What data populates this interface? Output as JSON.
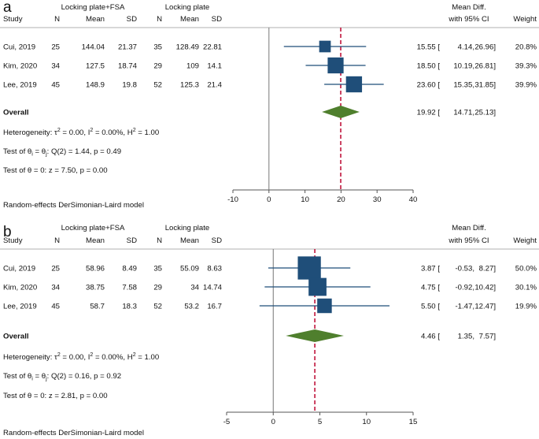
{
  "chart_data": [
    {
      "type": "forest",
      "panel_label": "a",
      "headers": {
        "study": "Study",
        "group1": "Locking plate+FSA",
        "group2": "Locking plate",
        "n": "N",
        "mean": "Mean",
        "sd": "SD",
        "effect_title": "Mean Diff.",
        "effect_sub": "with 95% CI",
        "weight": "Weight"
      },
      "studies": [
        {
          "name": "Cui, 2019",
          "n1": "25",
          "mean1": "144.04",
          "sd1": "21.37",
          "n2": "35",
          "mean2": "128.49",
          "sd2": "22.81",
          "md": 15.55,
          "lo": 4.14,
          "hi": 26.96,
          "weight": 20.8,
          "md_text": "15.55",
          "lo_text": "4.14,",
          "hi_text": "26.96]",
          "weight_text": "20.8%"
        },
        {
          "name": "Kim, 2020",
          "n1": "34",
          "mean1": "127.5",
          "sd1": "18.74",
          "n2": "29",
          "mean2": "109",
          "sd2": "14.1",
          "md": 18.5,
          "lo": 10.19,
          "hi": 26.81,
          "weight": 39.3,
          "md_text": "18.50",
          "lo_text": "10.19,",
          "hi_text": "26.81]",
          "weight_text": "39.3%"
        },
        {
          "name": "Lee, 2019",
          "n1": "45",
          "mean1": "148.9",
          "sd1": "19.8",
          "n2": "52",
          "mean2": "125.3",
          "sd2": "21.4",
          "md": 23.6,
          "lo": 15.35,
          "hi": 31.85,
          "weight": 39.9,
          "md_text": "23.60",
          "lo_text": "15.35,",
          "hi_text": "31.85]",
          "weight_text": "39.9%"
        }
      ],
      "overall": {
        "label": "Overall",
        "md": 19.92,
        "lo": 14.71,
        "hi": 25.13,
        "md_text": "19.92",
        "lo_text": "14.71,",
        "hi_text": "25.13]"
      },
      "stats": [
        {
          "pre": "Heterogeneity: τ",
          "s1": "2",
          "mid": " = 0.00, I",
          "s2": "2",
          "mid2": " = 0.00%, H",
          "s3": "2",
          "post": " = 1.00"
        },
        {
          "pre": "Test of θ",
          "sub1": "i",
          "mid": " = θ",
          "sub2": "j",
          "post": ": Q(2) = 1.44, p = 0.49"
        },
        {
          "text": "Test of θ = 0: z = 7.50, p = 0.00"
        }
      ],
      "xticks": [
        -10,
        0,
        10,
        20,
        30,
        40
      ],
      "xlim": [
        -10,
        40
      ],
      "footnote": "Random-effects DerSimonian-Laird model",
      "colors": {
        "box": "#1f4e79",
        "diamond": "#4f7f2d",
        "ref": "#c0143c",
        "axis": "#555555"
      }
    },
    {
      "type": "forest",
      "panel_label": "b",
      "headers": {
        "study": "Study",
        "group1": "Locking plate+FSA",
        "group2": "Locking plate",
        "n": "N",
        "mean": "Mean",
        "sd": "SD",
        "effect_title": "Mean Diff.",
        "effect_sub": "with 95% CI",
        "weight": "Weight"
      },
      "studies": [
        {
          "name": "Cui, 2019",
          "n1": "25",
          "mean1": "58.96",
          "sd1": "8.49",
          "n2": "35",
          "mean2": "55.09",
          "sd2": "8.63",
          "md": 3.87,
          "lo": -0.53,
          "hi": 8.27,
          "weight": 50.0,
          "md_text": "3.87",
          "lo_text": "-0.53,",
          "hi_text": "8.27]",
          "weight_text": "50.0%"
        },
        {
          "name": "Kim, 2020",
          "n1": "34",
          "mean1": "38.75",
          "sd1": "7.58",
          "n2": "29",
          "mean2": "34",
          "sd2": "14.74",
          "md": 4.75,
          "lo": -0.92,
          "hi": 10.42,
          "weight": 30.1,
          "md_text": "4.75",
          "lo_text": "-0.92,",
          "hi_text": "10.42]",
          "weight_text": "30.1%"
        },
        {
          "name": "Lee, 2019",
          "n1": "45",
          "mean1": "58.7",
          "sd1": "18.3",
          "n2": "52",
          "mean2": "53.2",
          "sd2": "16.7",
          "md": 5.5,
          "lo": -1.47,
          "hi": 12.47,
          "weight": 19.9,
          "md_text": "5.50",
          "lo_text": "-1.47,",
          "hi_text": "12.47]",
          "weight_text": "19.9%"
        }
      ],
      "overall": {
        "label": "Overall",
        "md": 4.46,
        "lo": 1.35,
        "hi": 7.57,
        "md_text": "4.46",
        "lo_text": "1.35,",
        "hi_text": "7.57]"
      },
      "stats": [
        {
          "pre": "Heterogeneity: τ",
          "s1": "2",
          "mid": " = 0.00, I",
          "s2": "2",
          "mid2": " = 0.00%, H",
          "s3": "2",
          "post": " = 1.00"
        },
        {
          "pre": "Test of θ",
          "sub1": "i",
          "mid": " = θ",
          "sub2": "j",
          "post": ": Q(2) = 0.16, p = 0.92"
        },
        {
          "text": "Test of θ = 0: z = 2.81, p = 0.00"
        }
      ],
      "xticks": [
        -5,
        0,
        5,
        10,
        15
      ],
      "xlim": [
        -5,
        15
      ],
      "footnote": "Random-effects DerSimonian-Laird model",
      "colors": {
        "box": "#1f4e79",
        "diamond": "#4f7f2d",
        "ref": "#c0143c",
        "axis": "#555555"
      }
    }
  ]
}
